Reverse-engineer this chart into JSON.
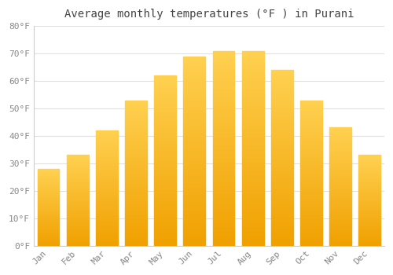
{
  "title": "Average monthly temperatures (°F ) in Purani",
  "months": [
    "Jan",
    "Feb",
    "Mar",
    "Apr",
    "May",
    "Jun",
    "Jul",
    "Aug",
    "Sep",
    "Oct",
    "Nov",
    "Dec"
  ],
  "values": [
    28,
    33,
    42,
    53,
    62,
    69,
    71,
    71,
    64,
    53,
    43,
    33
  ],
  "bar_color_light": "#FFD050",
  "bar_color_dark": "#F0A000",
  "background_color": "#FFFFFF",
  "grid_color": "#E0E0E0",
  "ylim": [
    0,
    80
  ],
  "ytick_step": 10,
  "title_fontsize": 10,
  "tick_fontsize": 8,
  "tick_color": "#888888",
  "spine_color": "#CCCCCC",
  "bar_width": 0.75
}
